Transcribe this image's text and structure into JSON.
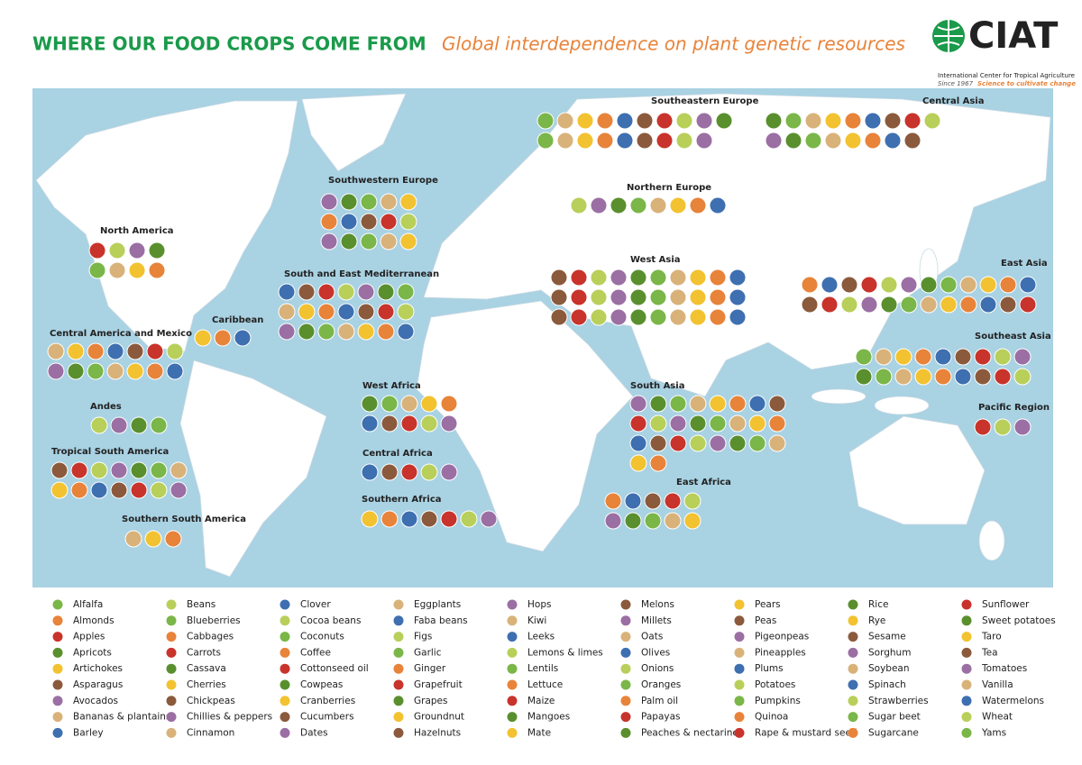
{
  "header": {
    "title": "WHERE OUR FOOD CROPS COME FROM",
    "subtitle": "Global interdependence on plant genetic resources"
  },
  "logo": {
    "name": "CIAT",
    "full_name": "International Center for Tropical Agriculture",
    "since": "Since 1967",
    "tagline": "Science to cultivate change"
  },
  "regions": [
    "Southeastern Europe",
    "Central Asia",
    "Southwestern Europe",
    "Northern Europe",
    "North America",
    "West Asia",
    "South and East Mediterranean",
    "East Asia",
    "Caribbean",
    "Central America and Mexico",
    "Southeast Asia",
    "West Africa",
    "South Asia",
    "Andes",
    "Pacific Region",
    "Tropical South America",
    "Central Africa",
    "East Africa",
    "Southern Africa",
    "Southern South America"
  ],
  "legend": [
    "Alfalfa",
    "Almonds",
    "Apples",
    "Apricots",
    "Artichokes",
    "Asparagus",
    "Avocados",
    "Bananas & plantains",
    "Barley",
    "Beans",
    "Blueberries",
    "Cabbages",
    "Carrots",
    "Cassava",
    "Cherries",
    "Chickpeas",
    "Chillies & peppers",
    "Cinnamon",
    "Clover",
    "Cocoa beans",
    "Coconuts",
    "Coffee",
    "Cottonseed oil",
    "Cowpeas",
    "Cranberries",
    "Cucumbers",
    "Dates",
    "Eggplants",
    "Faba beans",
    "Figs",
    "Garlic",
    "Ginger",
    "Grapefruit",
    "Grapes",
    "Groundnut",
    "Hazelnuts",
    "Hops",
    "Kiwi",
    "Leeks",
    "Lemons & limes",
    "Lentils",
    "Lettuce",
    "Maize",
    "Mangoes",
    "Mate",
    "Melons",
    "Millets",
    "Oats",
    "Olives",
    "Onions",
    "Oranges",
    "Palm oil",
    "Papayas",
    "Peaches & nectarines",
    "Pears",
    "Peas",
    "Pigeonpeas",
    "Pineapples",
    "Plums",
    "Potatoes",
    "Pumpkins",
    "Quinoa",
    "Rape & mustard seed",
    "Rice",
    "Rye",
    "Sesame",
    "Sorghum",
    "Soybean",
    "Spinach",
    "Strawberries",
    "Sugar beet",
    "Sugarcane",
    "Sunflower",
    "Sweet potatoes",
    "Taro",
    "Tea",
    "Tomatoes",
    "Vanilla",
    "Watermelons",
    "Wheat",
    "Yams"
  ]
}
